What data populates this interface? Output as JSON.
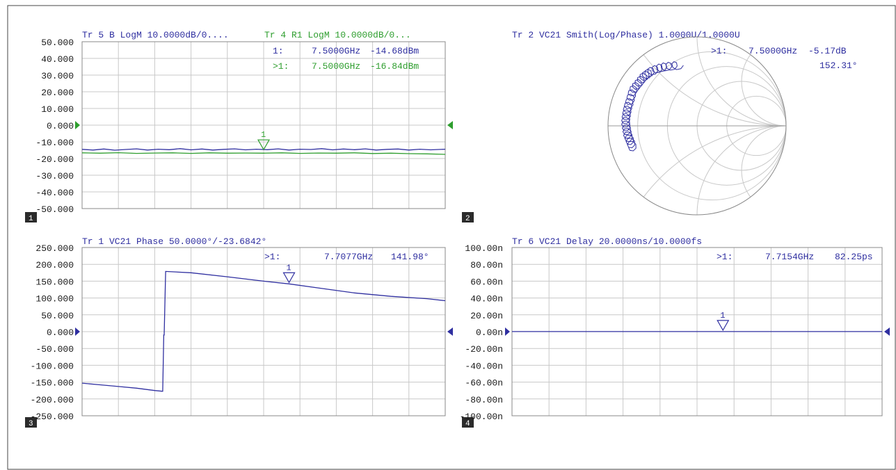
{
  "colors": {
    "blue": "#2f2fa0",
    "green": "#2e9e2e",
    "grid": "#c8c8c8",
    "text": "#1a1a1a",
    "label_bg": "#2b2b2b"
  },
  "chart_data": [
    {
      "type": "line",
      "panel_number": "1",
      "titles": [
        {
          "text": "Tr 5  B LogM 10.0000dB/0....",
          "color": "blue"
        },
        {
          "text": "Tr 4  R1 LogM 10.0000dB/0...",
          "color": "green"
        }
      ],
      "yticks": [
        "50.000",
        "40.000",
        "30.000",
        "20.000",
        "10.000",
        "0.000",
        "-10.000",
        "-20.000",
        "-30.000",
        "-40.000",
        "-50.000"
      ],
      "ylim": [
        -50,
        50
      ],
      "xlim": [
        0,
        100
      ],
      "grid": true,
      "reference_level": 0,
      "reference_color": "green",
      "marker_readouts": [
        {
          "label": "1:",
          "freq": "7.5000GHz",
          "value": "-14.68dBm",
          "color": "blue"
        },
        {
          "label": ">1:",
          "freq": "7.5000GHz",
          "value": "-16.84dBm",
          "color": "green"
        }
      ],
      "markers": [
        {
          "label": "1",
          "x": 50,
          "y": -15.5,
          "color": "green"
        }
      ],
      "series": [
        {
          "color": "blue",
          "x": [
            0,
            3,
            6,
            9,
            12,
            15,
            18,
            21,
            24,
            27,
            30,
            33,
            36,
            39,
            42,
            45,
            48,
            51,
            54,
            57,
            60,
            63,
            66,
            69,
            72,
            75,
            78,
            81,
            84,
            87,
            90,
            93,
            96,
            100
          ],
          "y": [
            -14.5,
            -14.9,
            -14.3,
            -15.0,
            -14.6,
            -14.2,
            -14.9,
            -14.4,
            -14.7,
            -14.1,
            -14.8,
            -14.3,
            -14.9,
            -14.5,
            -14.2,
            -14.8,
            -14.4,
            -14.7,
            -14.2,
            -14.9,
            -14.4,
            -14.6,
            -14.1,
            -14.8,
            -14.3,
            -14.7,
            -14.2,
            -14.9,
            -14.5,
            -14.3,
            -14.9,
            -14.4,
            -14.8,
            -14.4
          ]
        },
        {
          "color": "green",
          "x": [
            0,
            5,
            10,
            15,
            20,
            25,
            30,
            35,
            40,
            45,
            50,
            55,
            60,
            65,
            70,
            75,
            80,
            85,
            90,
            95,
            100
          ],
          "y": [
            -16.6,
            -16.8,
            -16.5,
            -16.9,
            -16.7,
            -16.6,
            -16.9,
            -16.6,
            -16.8,
            -16.7,
            -16.8,
            -16.6,
            -16.9,
            -16.7,
            -16.8,
            -16.6,
            -17.0,
            -16.8,
            -17.1,
            -17.2,
            -17.5
          ]
        }
      ]
    },
    {
      "type": "smith",
      "panel_number": "2",
      "titles": [
        {
          "text": "Tr 2  VC21 Smith(Log/Phase) 1.0000U/1.0000U",
          "color": "blue"
        }
      ],
      "marker_readouts": [
        {
          "label": ">1:",
          "freq": "7.5000GHz",
          "value": "-5.17dB",
          "color": "blue"
        },
        {
          "label": "",
          "freq": "",
          "value": "152.31°",
          "color": "blue"
        }
      ],
      "series": [
        {
          "color": "blue",
          "re": [
            -0.2,
            -0.3,
            -0.38,
            -0.45,
            -0.52,
            -0.56,
            -0.6,
            -0.64,
            -0.68,
            -0.72,
            -0.74,
            -0.76,
            -0.78,
            -0.79,
            -0.8,
            -0.8,
            -0.79,
            -0.78,
            -0.76,
            -0.74,
            -0.72
          ],
          "im": [
            0.68,
            0.67,
            0.66,
            0.64,
            0.61,
            0.58,
            0.55,
            0.5,
            0.45,
            0.4,
            0.33,
            0.26,
            0.2,
            0.14,
            0.08,
            0.02,
            -0.04,
            -0.1,
            -0.15,
            -0.2,
            -0.25
          ]
        }
      ]
    },
    {
      "type": "line",
      "panel_number": "3",
      "titles": [
        {
          "text": "Tr 1  VC21 Phase 50.0000°/-23.6842°",
          "color": "blue"
        }
      ],
      "yticks": [
        "250.000",
        "200.000",
        "150.000",
        "100.000",
        "50.000",
        "0.000",
        "-50.000",
        "-100.000",
        "-150.000",
        "-200.000",
        "-250.000"
      ],
      "ylim": [
        -250,
        250
      ],
      "xlim": [
        0,
        100
      ],
      "grid": true,
      "reference_level": 0,
      "reference_color": "blue",
      "marker_readouts": [
        {
          "label": ">1:",
          "freq": "7.7077GHz",
          "value": "141.98°",
          "color": "blue"
        }
      ],
      "markers": [
        {
          "label": "1",
          "x": 57,
          "y": 142,
          "color": "blue"
        }
      ],
      "series": [
        {
          "color": "blue",
          "x": [
            0,
            5,
            10,
            15,
            20,
            22,
            22.2,
            22.5,
            22.6,
            23,
            30,
            40,
            50,
            57,
            65,
            75,
            85,
            95,
            100
          ],
          "y": [
            -153,
            -158,
            -163,
            -168,
            -175,
            -177,
            -177,
            -10,
            -10,
            179,
            175,
            163,
            150,
            142,
            130,
            115,
            105,
            98,
            92
          ]
        }
      ]
    },
    {
      "type": "line",
      "panel_number": "4",
      "titles": [
        {
          "text": "Tr 6  VC21 Delay 20.0000ns/10.0000fs",
          "color": "blue"
        }
      ],
      "yticks": [
        "100.00n",
        "80.00n",
        "60.00n",
        "40.00n",
        "20.00n",
        "0.00n",
        "-20.00n",
        "-40.00n",
        "-60.00n",
        "-80.00n",
        "-100.00n"
      ],
      "ylim": [
        -100,
        100
      ],
      "xlim": [
        0,
        100
      ],
      "grid": true,
      "reference_level": 0,
      "reference_color": "blue",
      "marker_readouts": [
        {
          "label": ">1:",
          "freq": "7.7154GHz",
          "value": "82.25ps",
          "color": "blue"
        }
      ],
      "markers": [
        {
          "label": "1",
          "x": 57,
          "y": 0.08,
          "color": "blue"
        }
      ],
      "series": [
        {
          "color": "blue",
          "x": [
            0,
            100
          ],
          "y": [
            0.08,
            0.08
          ]
        }
      ]
    }
  ]
}
